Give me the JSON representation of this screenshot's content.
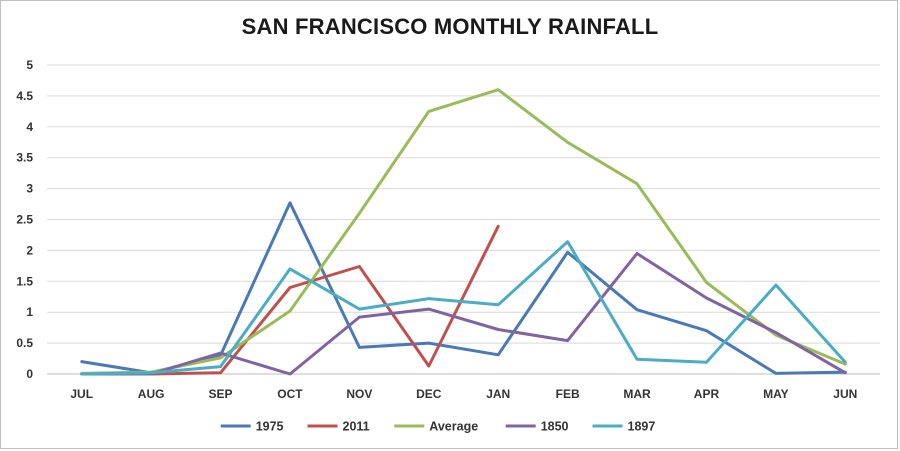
{
  "chart_data": {
    "type": "line",
    "title": "SAN FRANCISCO MONTHLY RAINFALL",
    "xlabel": "",
    "ylabel": "",
    "categories": [
      "JUL",
      "AUG",
      "SEP",
      "OCT",
      "NOV",
      "DEC",
      "JAN",
      "FEB",
      "MAR",
      "APR",
      "MAY",
      "JUN"
    ],
    "ylim": [
      0,
      5
    ],
    "yticks": [
      "0",
      "0.5",
      "1",
      "1.5",
      "2",
      "2.5",
      "3",
      "3.5",
      "4",
      "4.5",
      "5"
    ],
    "grid": true,
    "legend_position": "bottom",
    "series": [
      {
        "name": "1975",
        "color": "#4a7ab5",
        "values": [
          0.2,
          0.02,
          0.3,
          2.77,
          0.43,
          0.5,
          0.31,
          1.97,
          1.04,
          0.7,
          0.01,
          0.03
        ]
      },
      {
        "name": "2011",
        "color": "#c0504d",
        "values": [
          0.0,
          0.0,
          0.02,
          1.4,
          1.74,
          0.13,
          2.39,
          null,
          null,
          null,
          null,
          null
        ]
      },
      {
        "name": "Average",
        "color": "#9bbb59",
        "values": [
          0.01,
          0.03,
          0.26,
          1.02,
          2.6,
          4.25,
          4.6,
          3.75,
          3.08,
          1.48,
          0.63,
          0.16
        ]
      },
      {
        "name": "1850",
        "color": "#8064a2",
        "values": [
          0.0,
          0.0,
          0.34,
          0.0,
          0.92,
          1.05,
          0.72,
          0.54,
          1.95,
          1.23,
          0.67,
          0.02
        ]
      },
      {
        "name": "1897",
        "color": "#4bacc6",
        "values": [
          0.0,
          0.02,
          0.12,
          1.7,
          1.05,
          1.22,
          1.12,
          2.14,
          0.24,
          0.19,
          1.44,
          0.19
        ]
      }
    ]
  }
}
